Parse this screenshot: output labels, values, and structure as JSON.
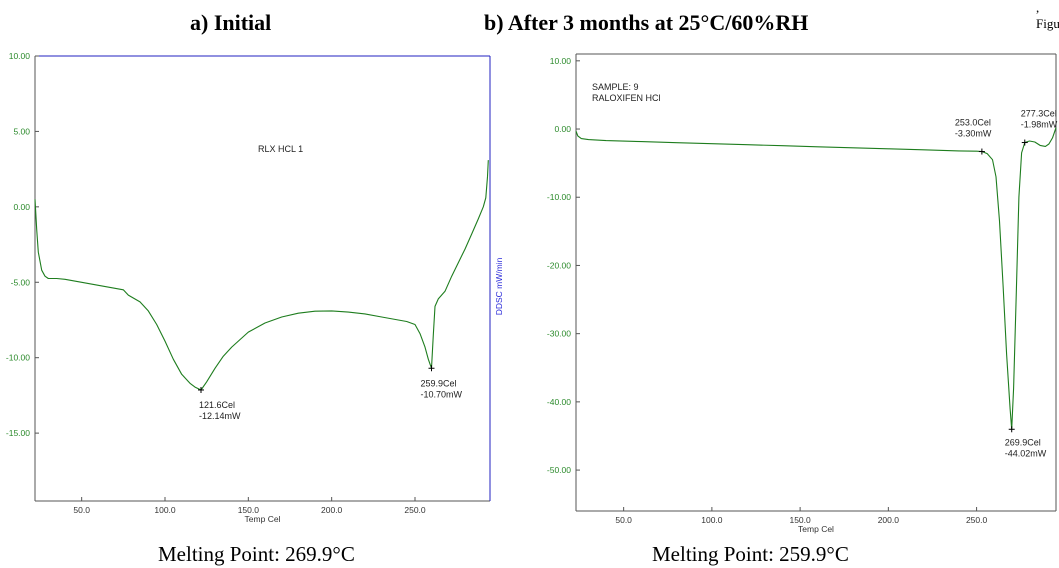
{
  "header": {
    "corner_text": ", Figu",
    "panel_a_title": "a) Initial",
    "panel_b_title": "b) After 3 months at 25°C/60%RH"
  },
  "captions": {
    "panel_a": "Melting Point: 269.9°C",
    "panel_b": "Melting Point: 259.9°C"
  },
  "colors": {
    "curve": "#1e7d1e",
    "ytick": "#2b8a2b",
    "frame": "#2020c0",
    "axis": "#555555"
  },
  "chart_data": [
    {
      "type": "line",
      "title": "",
      "sample_label": "RLX HCL 1",
      "xlabel": "Temp Cel",
      "ylabel": "",
      "right_axis_label": "DDSC mW/min",
      "xlim": [
        22,
        295
      ],
      "ylim": [
        -19.5,
        10
      ],
      "x_ticks": [
        50,
        100,
        150,
        200,
        250
      ],
      "x_tick_labels": [
        "50.0",
        "100.0",
        "150.0",
        "200.0",
        "250.0"
      ],
      "y_ticks": [
        10,
        5,
        0,
        -5,
        -10,
        -15
      ],
      "y_tick_labels": [
        "10.00",
        "5.00",
        "0.00",
        "-5.00",
        "-10.00",
        "-15.00"
      ],
      "series": [
        {
          "x": [
            22,
            23,
            24,
            26,
            28,
            30,
            35,
            40,
            50,
            60,
            70,
            75,
            78,
            85,
            90,
            95,
            100,
            105,
            110,
            115,
            118,
            121.6,
            125,
            130,
            135,
            140,
            145,
            150,
            160,
            170,
            180,
            190,
            200,
            210,
            220,
            230,
            240,
            245,
            250,
            253,
            256,
            258,
            259.9,
            261,
            262,
            264,
            268,
            272,
            276,
            280,
            284,
            288,
            291,
            292.5,
            293.5,
            294
          ],
          "y": [
            0.5,
            -1.5,
            -3.0,
            -4.2,
            -4.6,
            -4.75,
            -4.75,
            -4.8,
            -5.0,
            -5.2,
            -5.4,
            -5.5,
            -5.85,
            -6.3,
            -6.9,
            -7.8,
            -8.9,
            -10.1,
            -11.1,
            -11.7,
            -11.95,
            -12.14,
            -11.6,
            -10.7,
            -9.9,
            -9.3,
            -8.8,
            -8.3,
            -7.7,
            -7.3,
            -7.05,
            -6.92,
            -6.9,
            -6.98,
            -7.1,
            -7.3,
            -7.5,
            -7.6,
            -7.8,
            -8.4,
            -9.3,
            -10.1,
            -10.7,
            -8.5,
            -6.6,
            -6.1,
            -5.6,
            -4.6,
            -3.7,
            -2.8,
            -1.8,
            -0.8,
            0.0,
            0.6,
            2.0,
            3.1
          ]
        }
      ],
      "annotations": [
        {
          "x": 121.6,
          "y": -12.14,
          "line1": "121.6Cel",
          "line2": "-12.14mW"
        },
        {
          "x": 259.9,
          "y": -10.7,
          "line1": "259.9Cel",
          "line2": "-10.70mW"
        }
      ]
    },
    {
      "type": "line",
      "title": "",
      "sample_label": "SAMPLE: 9",
      "sample_name": "RALOXIFEN HCl",
      "xlabel": "Temp Cel",
      "ylabel": "",
      "xlim": [
        23,
        295
      ],
      "ylim": [
        -56,
        11
      ],
      "x_ticks": [
        50,
        100,
        150,
        200,
        250
      ],
      "x_tick_labels": [
        "50.0",
        "100.0",
        "150.0",
        "200.0",
        "250.0"
      ],
      "y_ticks": [
        10,
        0,
        -10,
        -20,
        -30,
        -40,
        -50
      ],
      "y_tick_labels": [
        "10.00",
        "0.00",
        "-10.00",
        "-20.00",
        "-30.00",
        "-40.00",
        "-50.00"
      ],
      "series": [
        {
          "x": [
            23,
            24,
            26,
            30,
            40,
            60,
            80,
            100,
            120,
            140,
            160,
            180,
            200,
            220,
            240,
            250,
            253,
            256,
            259,
            261,
            263,
            265,
            267,
            269,
            269.9,
            271,
            272.5,
            274,
            275.5,
            277.3,
            280,
            283,
            286,
            289,
            291,
            293,
            295
          ],
          "y": [
            -0.3,
            -1.0,
            -1.4,
            -1.55,
            -1.7,
            -1.85,
            -2.0,
            -2.15,
            -2.3,
            -2.45,
            -2.6,
            -2.75,
            -2.9,
            -3.05,
            -3.2,
            -3.25,
            -3.3,
            -3.6,
            -4.5,
            -7.0,
            -13.5,
            -23.0,
            -33.0,
            -41.0,
            -44.02,
            -38.0,
            -24.0,
            -10.0,
            -3.5,
            -1.98,
            -1.75,
            -1.9,
            -2.4,
            -2.55,
            -2.2,
            -1.3,
            0.2
          ]
        }
      ],
      "annotations": [
        {
          "x": 253.0,
          "y": -3.3,
          "line1": "253.0Cel",
          "line2": "-3.30mW"
        },
        {
          "x": 277.3,
          "y": -1.98,
          "line1": "277.3Cel",
          "line2": "-1.98mW"
        },
        {
          "x": 269.9,
          "y": -44.02,
          "line1": "269.9Cel",
          "line2": "-44.02mW"
        }
      ]
    }
  ]
}
